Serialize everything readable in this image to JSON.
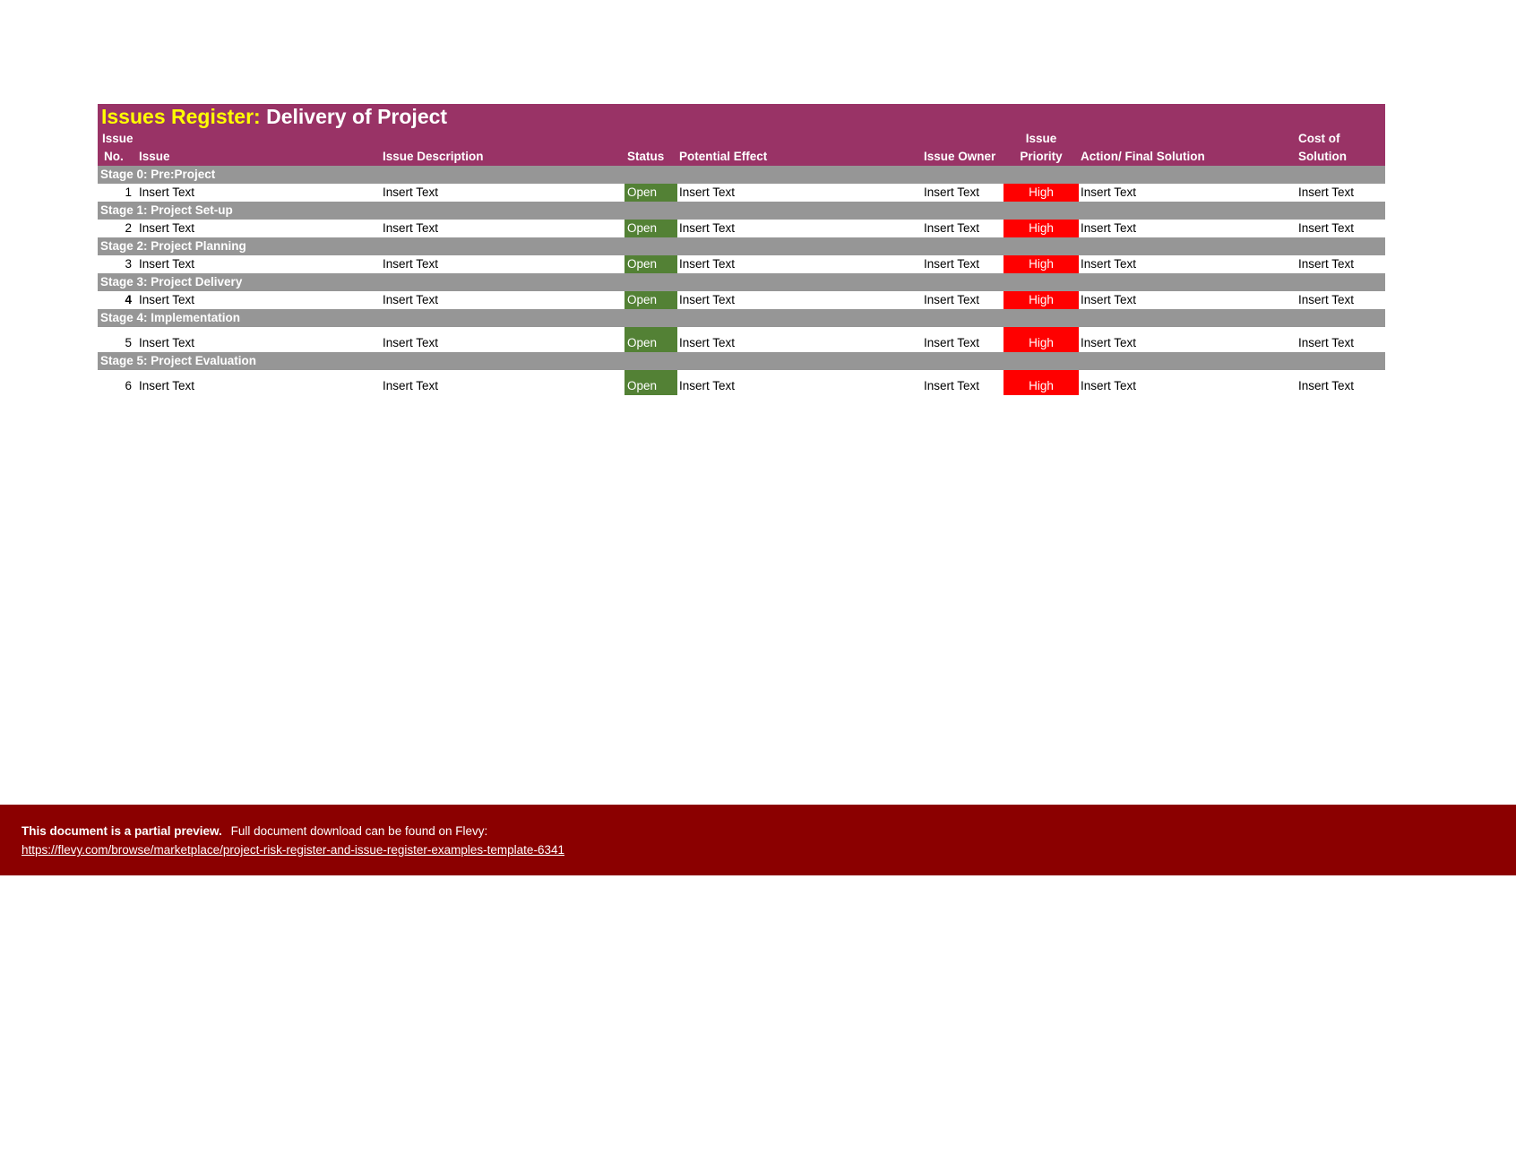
{
  "title": {
    "accent": "Issues Register:",
    "main": "Delivery of Project"
  },
  "headers": {
    "no_line1": "Issue",
    "no_line2": "No.",
    "issue": "Issue",
    "description": "Issue Description",
    "status": "Status",
    "effect": "Potential Effect",
    "owner": "Issue Owner",
    "priority_line1": "Issue",
    "priority_line2": "Priority",
    "action": "Action/ Final Solution",
    "cost_line1": "Cost of",
    "cost_line2": "Solution"
  },
  "stages": [
    {
      "label": "Stage 0: Pre:Project",
      "row": {
        "no": "1",
        "issue": "Insert Text",
        "description": "Insert Text",
        "status": "Open",
        "effect": "Insert Text",
        "owner": "Insert Text",
        "priority": "High",
        "action": "Insert Text",
        "cost": "Insert Text"
      }
    },
    {
      "label": "Stage 1: Project Set-up",
      "row": {
        "no": "2",
        "issue": "Insert Text",
        "description": "Insert Text",
        "status": "Open",
        "effect": "Insert Text",
        "owner": "Insert Text",
        "priority": "High",
        "action": "Insert Text",
        "cost": "Insert Text"
      }
    },
    {
      "label": "Stage 2: Project Planning",
      "row": {
        "no": "3",
        "issue": "Insert Text",
        "description": "Insert Text",
        "status": "Open",
        "effect": "Insert Text",
        "owner": "Insert Text",
        "priority": "High",
        "action": "Insert Text",
        "cost": "Insert Text"
      }
    },
    {
      "label": "Stage 3: Project Delivery",
      "row": {
        "no": "4",
        "issue": "Insert Text",
        "description": "Insert Text",
        "status": "Open",
        "effect": "Insert Text",
        "owner": "Insert Text",
        "priority": "High",
        "action": "Insert Text",
        "cost": "Insert Text"
      }
    },
    {
      "label": "Stage 4: Implementation",
      "row": {
        "no": "5",
        "issue": "Insert Text",
        "description": "Insert Text",
        "status": "Open",
        "effect": "Insert Text",
        "owner": "Insert Text",
        "priority": "High",
        "action": "Insert Text",
        "cost": "Insert Text"
      }
    },
    {
      "label": "Stage 5: Project Evaluation",
      "row": {
        "no": "6",
        "issue": "Insert Text",
        "description": "Insert Text",
        "status": "Open",
        "effect": "Insert Text",
        "owner": "Insert Text",
        "priority": "High",
        "action": "Insert Text",
        "cost": "Insert Text"
      }
    }
  ],
  "banner": {
    "bold": "This document is a partial preview.",
    "text": "Full document download can be found on Flevy:",
    "link": "https://flevy.com/browse/marketplace/project-risk-register-and-issue-register-examples-template-6341"
  },
  "colors": {
    "header_bg": "#993366",
    "title_accent": "#ffff00",
    "stage_bg": "#969696",
    "status_open": "#538135",
    "priority_high": "#ff0000",
    "banner_bg": "#8b0000"
  }
}
